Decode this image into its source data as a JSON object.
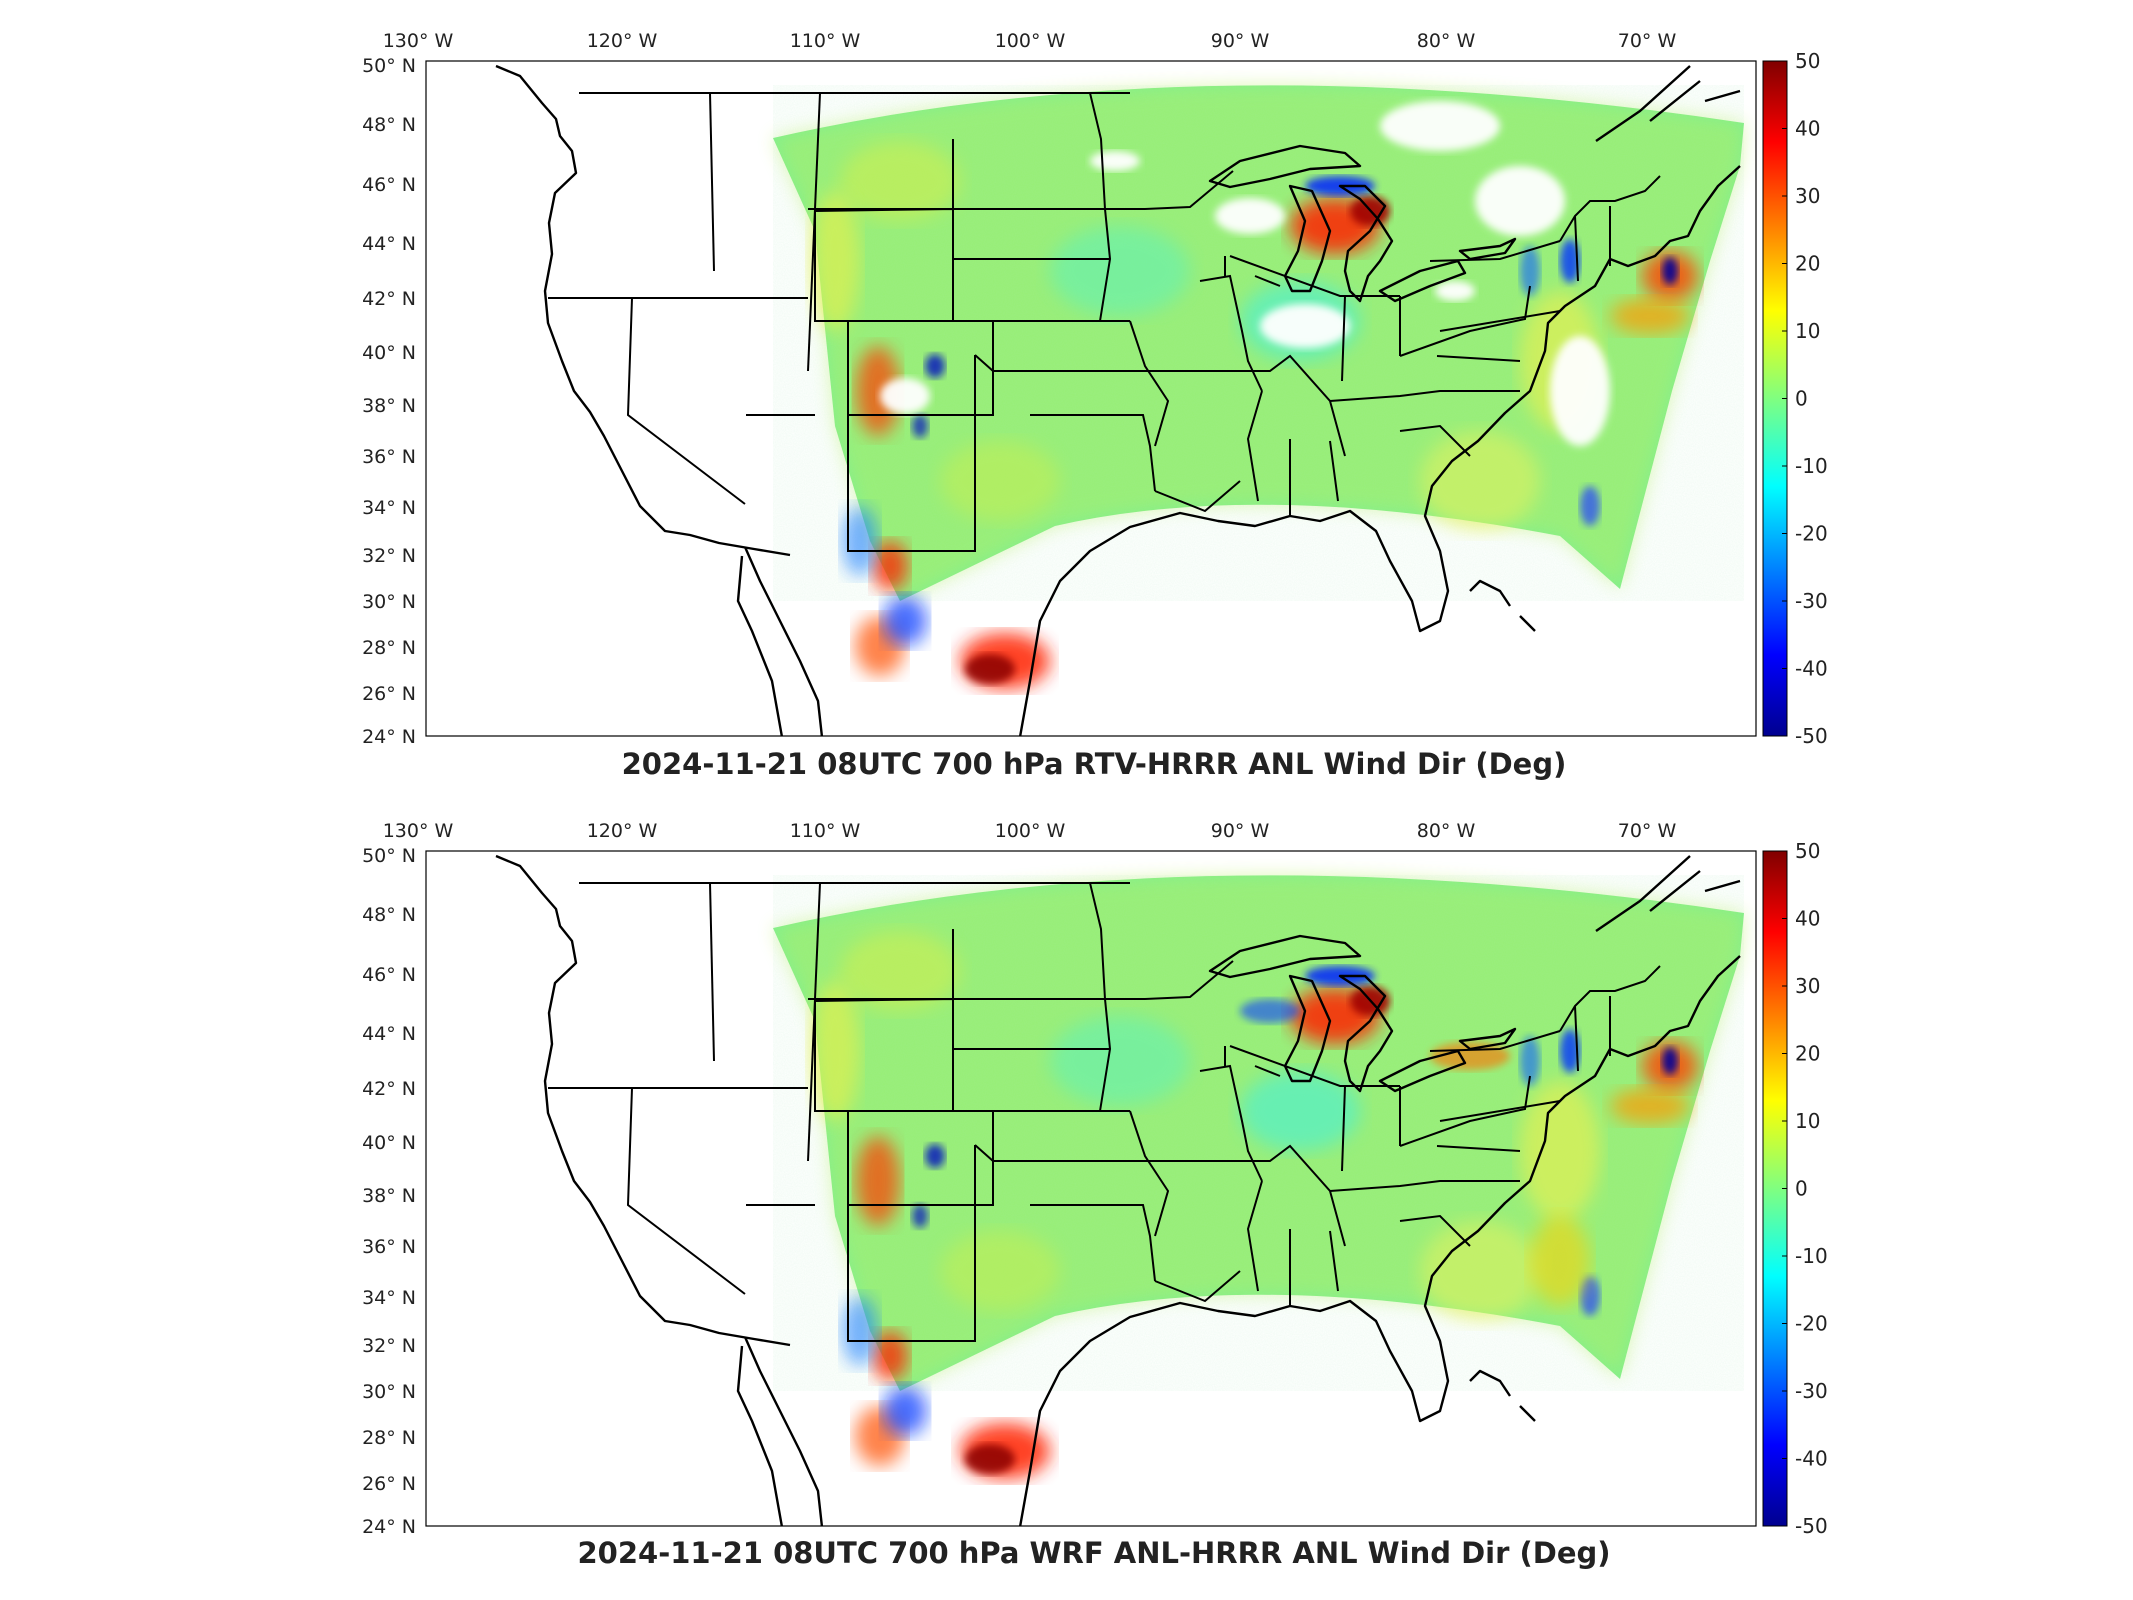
{
  "figure": {
    "panels": [
      {
        "title": "2024-11-21 08UTC 700 hPa RTV-HRRR ANL Wind Dir (Deg)",
        "variant": "rtv",
        "x_ticks": [
          "130° W",
          "120° W",
          "110° W",
          "100° W",
          "90° W",
          "80° W",
          "70° W"
        ],
        "y_ticks": [
          "50° N",
          "48° N",
          "46° N",
          "44° N",
          "42° N",
          "40° N",
          "38° N",
          "36° N",
          "34° N",
          "32° N",
          "30° N",
          "28° N",
          "26° N",
          "24° N"
        ],
        "colorbar": {
          "min": -50,
          "max": 50,
          "ticks": [
            "50",
            "40",
            "30",
            "20",
            "10",
            "0",
            "-10",
            "-20",
            "-30",
            "-40",
            "-50"
          ]
        }
      },
      {
        "title": "2024-11-21 08UTC 700 hPa WRF ANL-HRRR ANL Wind Dir (Deg)",
        "variant": "wrf",
        "x_ticks": [
          "130° W",
          "120° W",
          "110° W",
          "100° W",
          "90° W",
          "80° W",
          "70° W"
        ],
        "y_ticks": [
          "50° N",
          "48° N",
          "46° N",
          "44° N",
          "42° N",
          "40° N",
          "38° N",
          "36° N",
          "34° N",
          "32° N",
          "30° N",
          "28° N",
          "26° N",
          "24° N"
        ],
        "colorbar": {
          "min": -50,
          "max": 50,
          "ticks": [
            "50",
            "40",
            "30",
            "20",
            "10",
            "0",
            "-10",
            "-20",
            "-30",
            "-40",
            "-50"
          ]
        }
      }
    ],
    "colormap": [
      "#00008f",
      "#0000ff",
      "#0080ff",
      "#00ffff",
      "#80ff80",
      "#ffff00",
      "#ff8000",
      "#ff0000",
      "#800000"
    ]
  }
}
